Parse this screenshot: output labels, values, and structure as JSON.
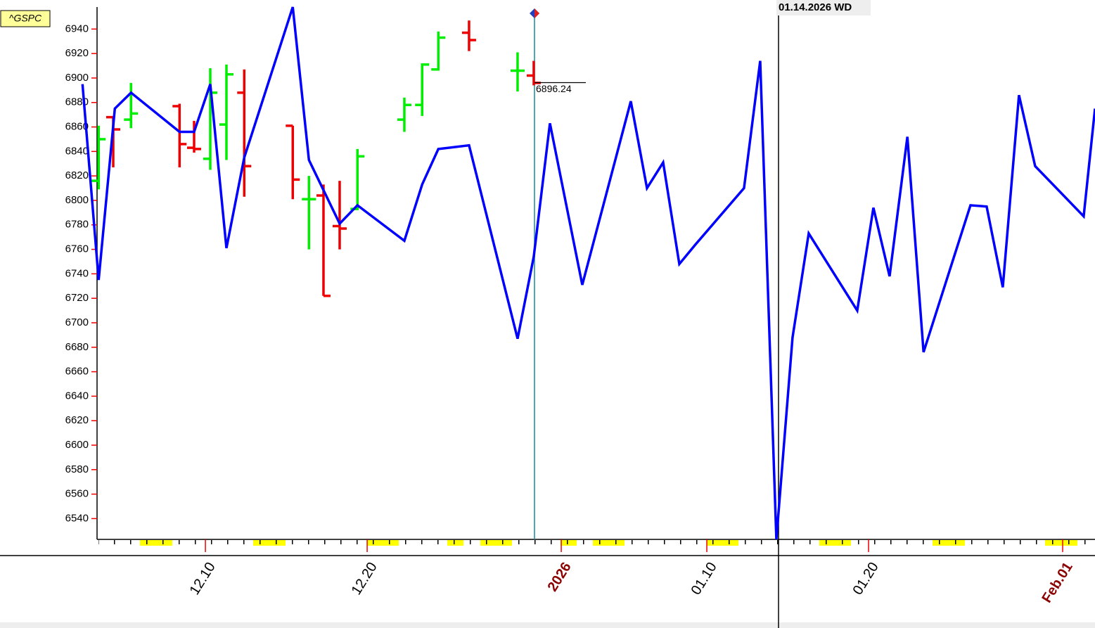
{
  "chart_data": {
    "type": "line",
    "symbol": "^GSPC",
    "cursor_date": "01.14.2026 WD",
    "cursor_value": 6896.24,
    "color": "#0000ff",
    "x": [
      2.4,
      3.4,
      4.4,
      5.4,
      8.4,
      9.3,
      10.3,
      11.3,
      12.4,
      15.4,
      16.4,
      18.3,
      19.4,
      22.3,
      23.4,
      24.4,
      26.3,
      29.3,
      30.3,
      31.3,
      33.3,
      36.3,
      37.3,
      38.3,
      39.3,
      40.3,
      43.3,
      44.3,
      45.3,
      46.3,
      47.3,
      50.3,
      51.3,
      52.3,
      53.4,
      54.4,
      57.3,
      58.3,
      59.3,
      60.3,
      61.3,
      64.3,
      65.0
    ],
    "values": [
      6895,
      6735,
      6875,
      6888,
      6856,
      6856,
      6895,
      6761,
      6835,
      6958,
      6833,
      6781,
      6796,
      6767,
      6813,
      6842,
      6845,
      6687,
      6754,
      6863,
      6731,
      6881,
      6810,
      6831,
      6748,
      6764,
      6810,
      6914,
      6523,
      6688,
      6773,
      6710,
      6794,
      6738,
      6852,
      6676,
      6796,
      6795,
      6729,
      6886,
      6828,
      6787,
      6875
    ],
    "ohlc": {
      "up_color": "#00ee00",
      "down_color": "#ee0000",
      "x": [
        3.4,
        4.3,
        5.4,
        8.4,
        9.3,
        10.3,
        11.3,
        12.4,
        15.4,
        16.4,
        17.3,
        18.3,
        19.4,
        22.3,
        23.4,
        24.4,
        26.3,
        29.3,
        30.3
      ],
      "open": [
        6816,
        6868,
        6866,
        6877,
        6843,
        6834,
        6862,
        6888,
        6861,
        6801,
        6804,
        6779,
        6793,
        6866,
        6878,
        6907,
        6937,
        6906,
        6902
      ],
      "high": [
        6861,
        6868,
        6896,
        6879,
        6865,
        6908,
        6911,
        6907,
        6861,
        6820,
        6813,
        6816,
        6842,
        6884,
        6912,
        6938,
        6947,
        6921,
        6914
      ],
      "low": [
        6809,
        6827,
        6859,
        6827,
        6839,
        6825,
        6833,
        6803,
        6801,
        6760,
        6722,
        6760,
        6792,
        6856,
        6869,
        6906,
        6922,
        6889,
        6894
      ],
      "close": [
        6850,
        6858,
        6871,
        6846,
        6842,
        6888,
        6903,
        6828,
        6817,
        6801,
        6722,
        6777,
        6836,
        6878,
        6911,
        6933,
        6931,
        6906,
        6896
      ]
    },
    "xlim": [
      3.3,
      65
    ],
    "ylim": [
      6523,
      6958
    ],
    "xticks": [
      {
        "value": 10,
        "label": "12.10"
      },
      {
        "value": 20,
        "label": "12.20"
      },
      {
        "value": 32,
        "label": "2026",
        "color": "#8b0000"
      },
      {
        "value": 41,
        "label": "01.10"
      },
      {
        "value": 51,
        "label": "01.20"
      },
      {
        "value": 63,
        "label": "Feb.01",
        "color": "#8b0000"
      }
    ],
    "yticks": [
      6540,
      6560,
      6580,
      6600,
      6620,
      6640,
      6660,
      6680,
      6700,
      6720,
      6740,
      6760,
      6780,
      6800,
      6820,
      6840,
      6860,
      6880,
      6900,
      6920,
      6940
    ]
  }
}
